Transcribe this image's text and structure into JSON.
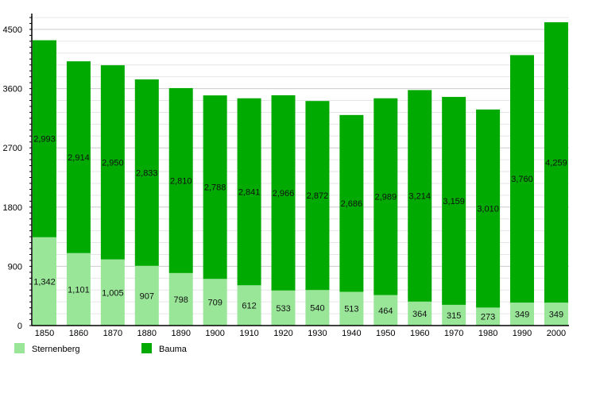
{
  "chart_data": {
    "type": "bar",
    "stacked": true,
    "categories": [
      "1850",
      "1860",
      "1870",
      "1880",
      "1890",
      "1900",
      "1910",
      "1920",
      "1930",
      "1940",
      "1950",
      "1960",
      "1970",
      "1980",
      "1990",
      "2000"
    ],
    "series": [
      {
        "name": "Sternenberg",
        "color": "#99e699",
        "values": [
          1342,
          1101,
          1005,
          907,
          798,
          709,
          612,
          533,
          540,
          513,
          464,
          364,
          315,
          273,
          349,
          349
        ],
        "labels": [
          "1,342",
          "1,101",
          "1,005",
          "907",
          "798",
          "709",
          "612",
          "533",
          "540",
          "513",
          "464",
          "364",
          "315",
          "273",
          "349",
          "349"
        ]
      },
      {
        "name": "Bauma",
        "color": "#00aa00",
        "values": [
          2993,
          2914,
          2950,
          2833,
          2810,
          2788,
          2841,
          2966,
          2872,
          2686,
          2989,
          3214,
          3159,
          3010,
          3760,
          4259
        ],
        "labels": [
          "2,993",
          "2,914",
          "2,950",
          "2,833",
          "2,810",
          "2,788",
          "2,841",
          "2,966",
          "2,872",
          "2,686",
          "2,989",
          "3,214",
          "3,159",
          "3,010",
          "3,760",
          "4,259"
        ]
      }
    ],
    "yticks": [
      "0",
      "900",
      "1800",
      "2700",
      "3600",
      "4500"
    ],
    "ylim": [
      0,
      4740
    ],
    "grid": true,
    "legend": "bottom"
  }
}
